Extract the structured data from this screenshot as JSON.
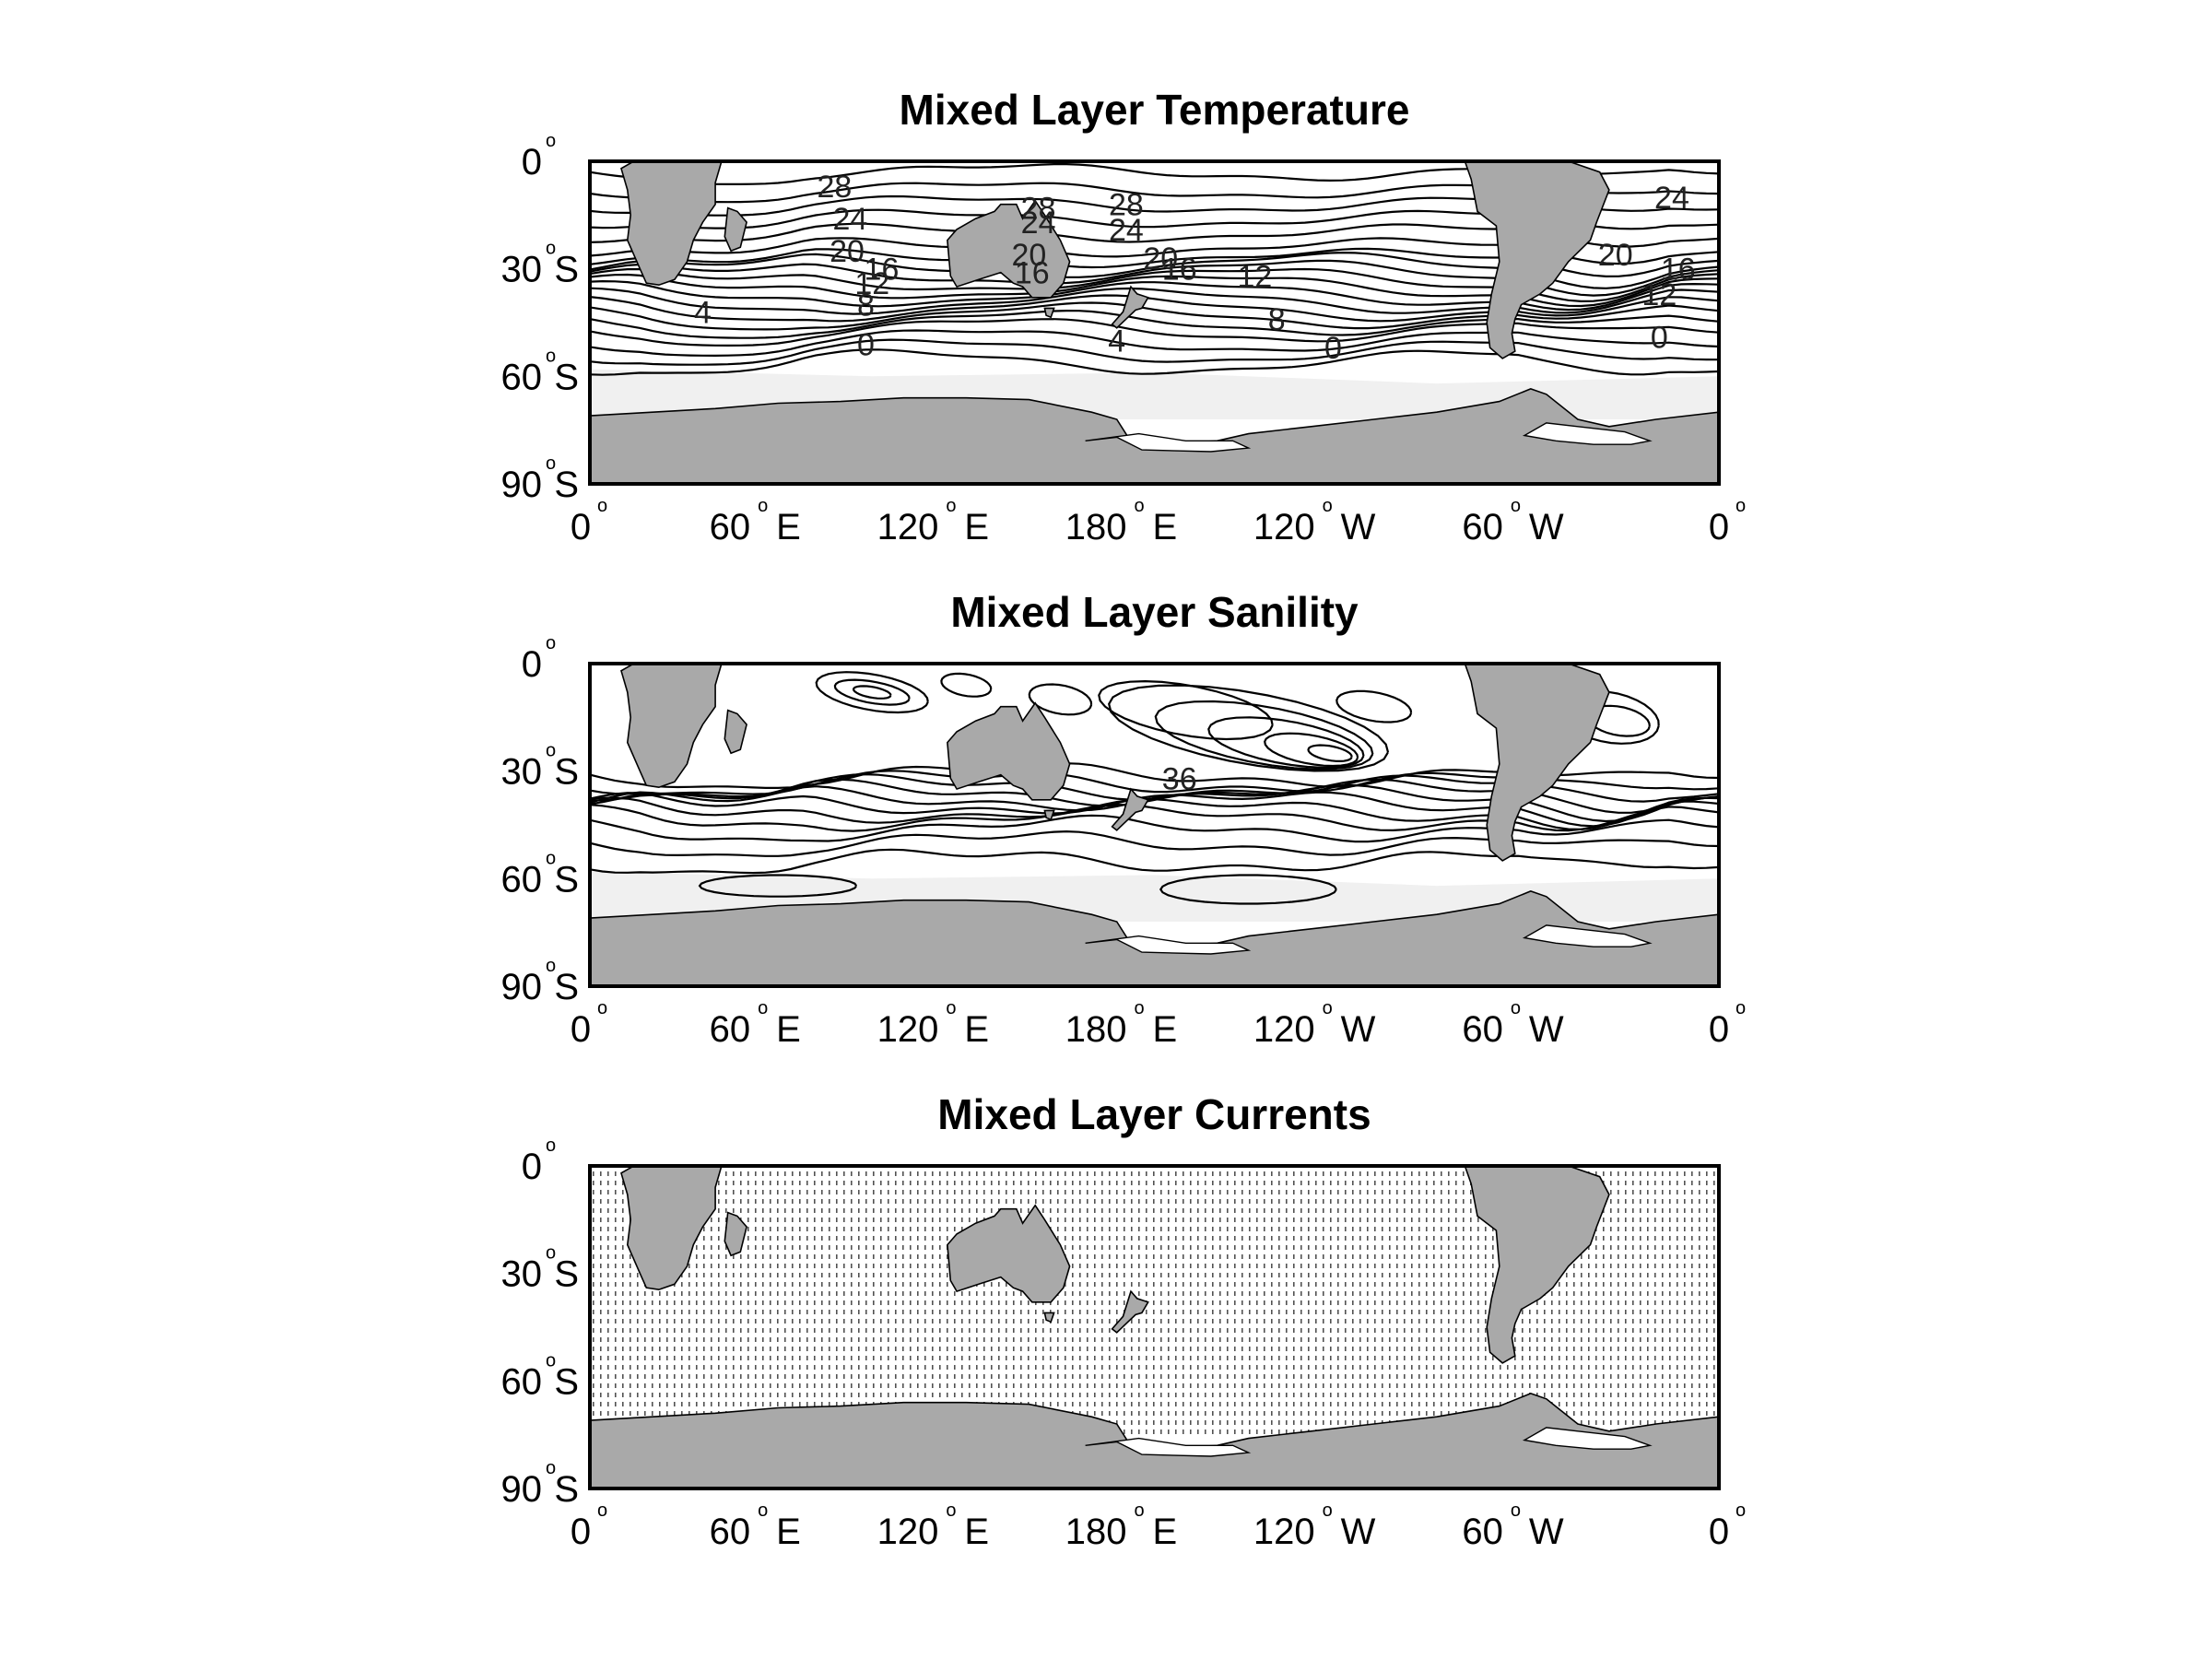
{
  "figure": {
    "panels": [
      {
        "id": "temperature",
        "title": "Mixed Layer Temperature",
        "contour_labels": [
          "28",
          "24",
          "20",
          "16",
          "12",
          "8",
          "4",
          "0",
          "28",
          "24",
          "20",
          "16",
          "28",
          "24",
          "20",
          "16",
          "12",
          "8",
          "4",
          "0",
          "24",
          "20",
          "16",
          "12",
          "0"
        ]
      },
      {
        "id": "salinity",
        "title": "Mixed Layer Sanility",
        "contour_labels": [
          "36"
        ]
      },
      {
        "id": "currents",
        "title": "Mixed Layer Currents",
        "contour_labels": []
      }
    ],
    "y_ticks": [
      {
        "num": "0",
        "deg": "o",
        "suffix": ""
      },
      {
        "num": "30",
        "deg": "o",
        "suffix": "S"
      },
      {
        "num": "60",
        "deg": "o",
        "suffix": "S"
      },
      {
        "num": "90",
        "deg": "o",
        "suffix": "S"
      }
    ],
    "x_ticks": [
      {
        "num": "0",
        "deg": "o",
        "suffix": ""
      },
      {
        "num": "60",
        "deg": "o",
        "suffix": "E"
      },
      {
        "num": "120",
        "deg": "o",
        "suffix": "E"
      },
      {
        "num": "180",
        "deg": "o",
        "suffix": "E"
      },
      {
        "num": "120",
        "deg": "o",
        "suffix": "W"
      },
      {
        "num": "60",
        "deg": "o",
        "suffix": "W"
      },
      {
        "num": "0",
        "deg": "o",
        "suffix": ""
      }
    ],
    "colors": {
      "land": "#a9a9a9",
      "ice": "#f0f0f0",
      "ocean": "#ffffff",
      "contour": "#000000"
    }
  }
}
